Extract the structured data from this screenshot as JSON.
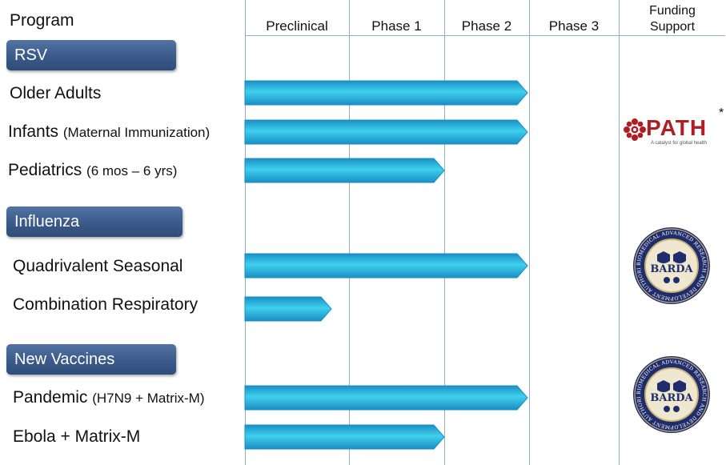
{
  "header": {
    "program": "Program",
    "phases": [
      "Preclinical",
      "Phase 1",
      "Phase 2",
      "Phase 3"
    ],
    "funding": "Funding Support"
  },
  "sections": [
    {
      "title": "RSV",
      "rows": [
        {
          "label": "Older Adults",
          "sub": "",
          "stage_reached": "Phase 2"
        },
        {
          "label": "Infants",
          "sub": "(Maternal Immunization)",
          "stage_reached": "Phase 2"
        },
        {
          "label": "Pediatrics",
          "sub": "(6 mos – 6 yrs)",
          "stage_reached": "Phase 1"
        }
      ]
    },
    {
      "title": "Influenza",
      "rows": [
        {
          "label": "Quadrivalent Seasonal",
          "sub": "",
          "stage_reached": "Phase 2"
        },
        {
          "label": "Combination Respiratory",
          "sub": "",
          "stage_reached": "Preclinical"
        }
      ]
    },
    {
      "title": "New Vaccines",
      "rows": [
        {
          "label": "Pandemic",
          "sub": "(H7N9 + Matrix-M)",
          "stage_reached": "Phase 2"
        },
        {
          "label": "Ebola + Matrix-M",
          "sub": "",
          "stage_reached": "Phase 1"
        }
      ]
    }
  ],
  "funding_logos": {
    "path": {
      "name": "PATH",
      "tagline": "A catalyst for global health",
      "mark": "*"
    },
    "barda_1": {
      "name": "BARDA",
      "ring_text": "BIOMEDICAL ADVANCED RESEARCH AND DEVELOPMENT AUTHORITY"
    },
    "barda_2": {
      "name": "BARDA",
      "ring_text": "BIOMEDICAL ADVANCED RESEARCH AND DEVELOPMENT AUTHORITY"
    }
  },
  "colors": {
    "bar_light": "#3fd0ee",
    "bar_dark": "#1a8ec4",
    "section_fill": "#3b5a8a",
    "grid_line": "#8fb3c6",
    "path_red": "#b01d23",
    "seal_navy": "#1f2d6b",
    "seal_gold": "#c9b37a"
  }
}
